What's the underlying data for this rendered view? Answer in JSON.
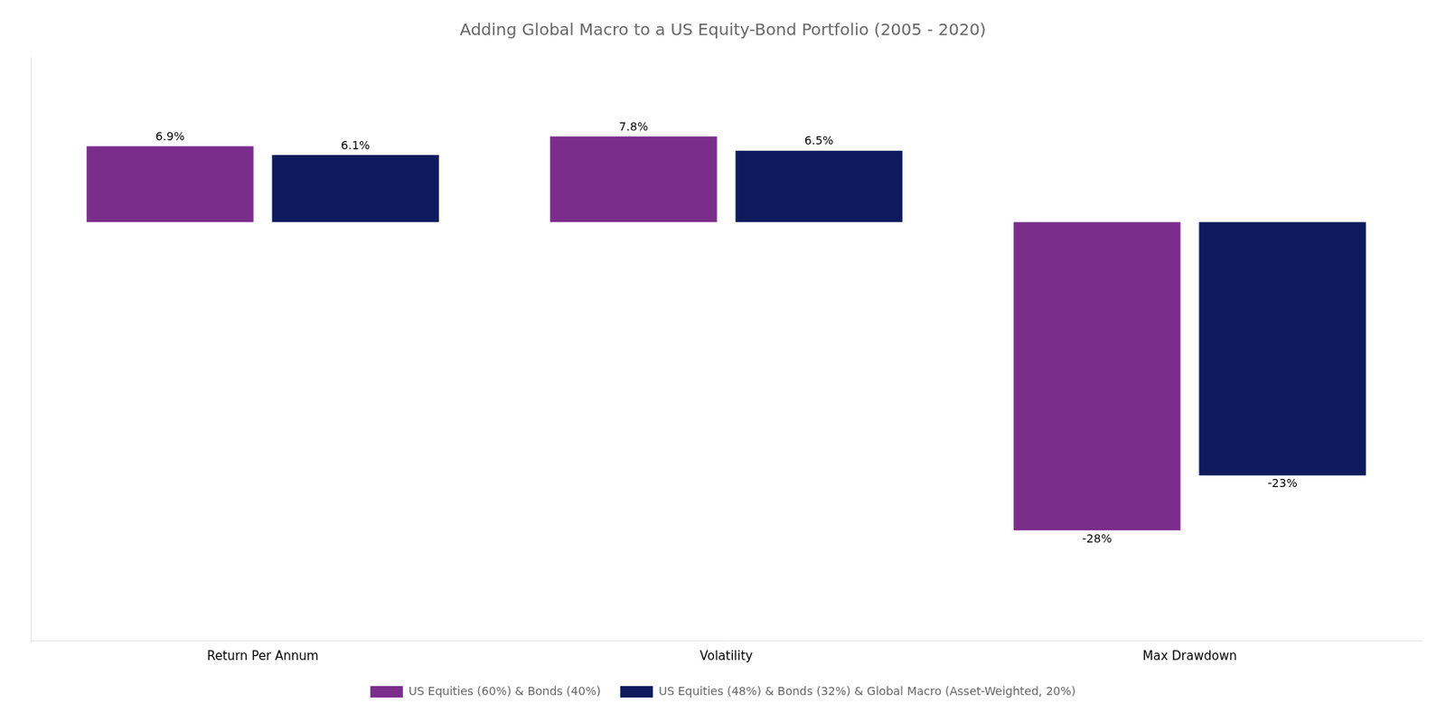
{
  "chart_data": {
    "type": "bar",
    "title": "Adding Global Macro to a US Equity-Bond Portfolio (2005 - 2020)",
    "categories": [
      "Return Per Annum",
      "Volatility",
      "Max Drawdown"
    ],
    "series": [
      {
        "name": "US Equities (60%) & Bonds (40%)",
        "color": "#7B2D8B",
        "values": [
          6.9,
          7.8,
          -28.0
        ],
        "value_labels": [
          "6.9%",
          "7.8%",
          "-28%"
        ]
      },
      {
        "name": "US Equities (48%) & Bonds (32%) & Global Macro (Asset-Weighted, 20%)",
        "color": "#0D1B5E",
        "values": [
          6.1,
          6.5,
          -23.0
        ],
        "value_labels": [
          "6.1%",
          "6.5%",
          "-23%"
        ]
      }
    ],
    "ylim": [
      -38,
      15
    ],
    "data_labels": true,
    "tick_labels": "x",
    "grid": false,
    "legend": "bottom"
  }
}
